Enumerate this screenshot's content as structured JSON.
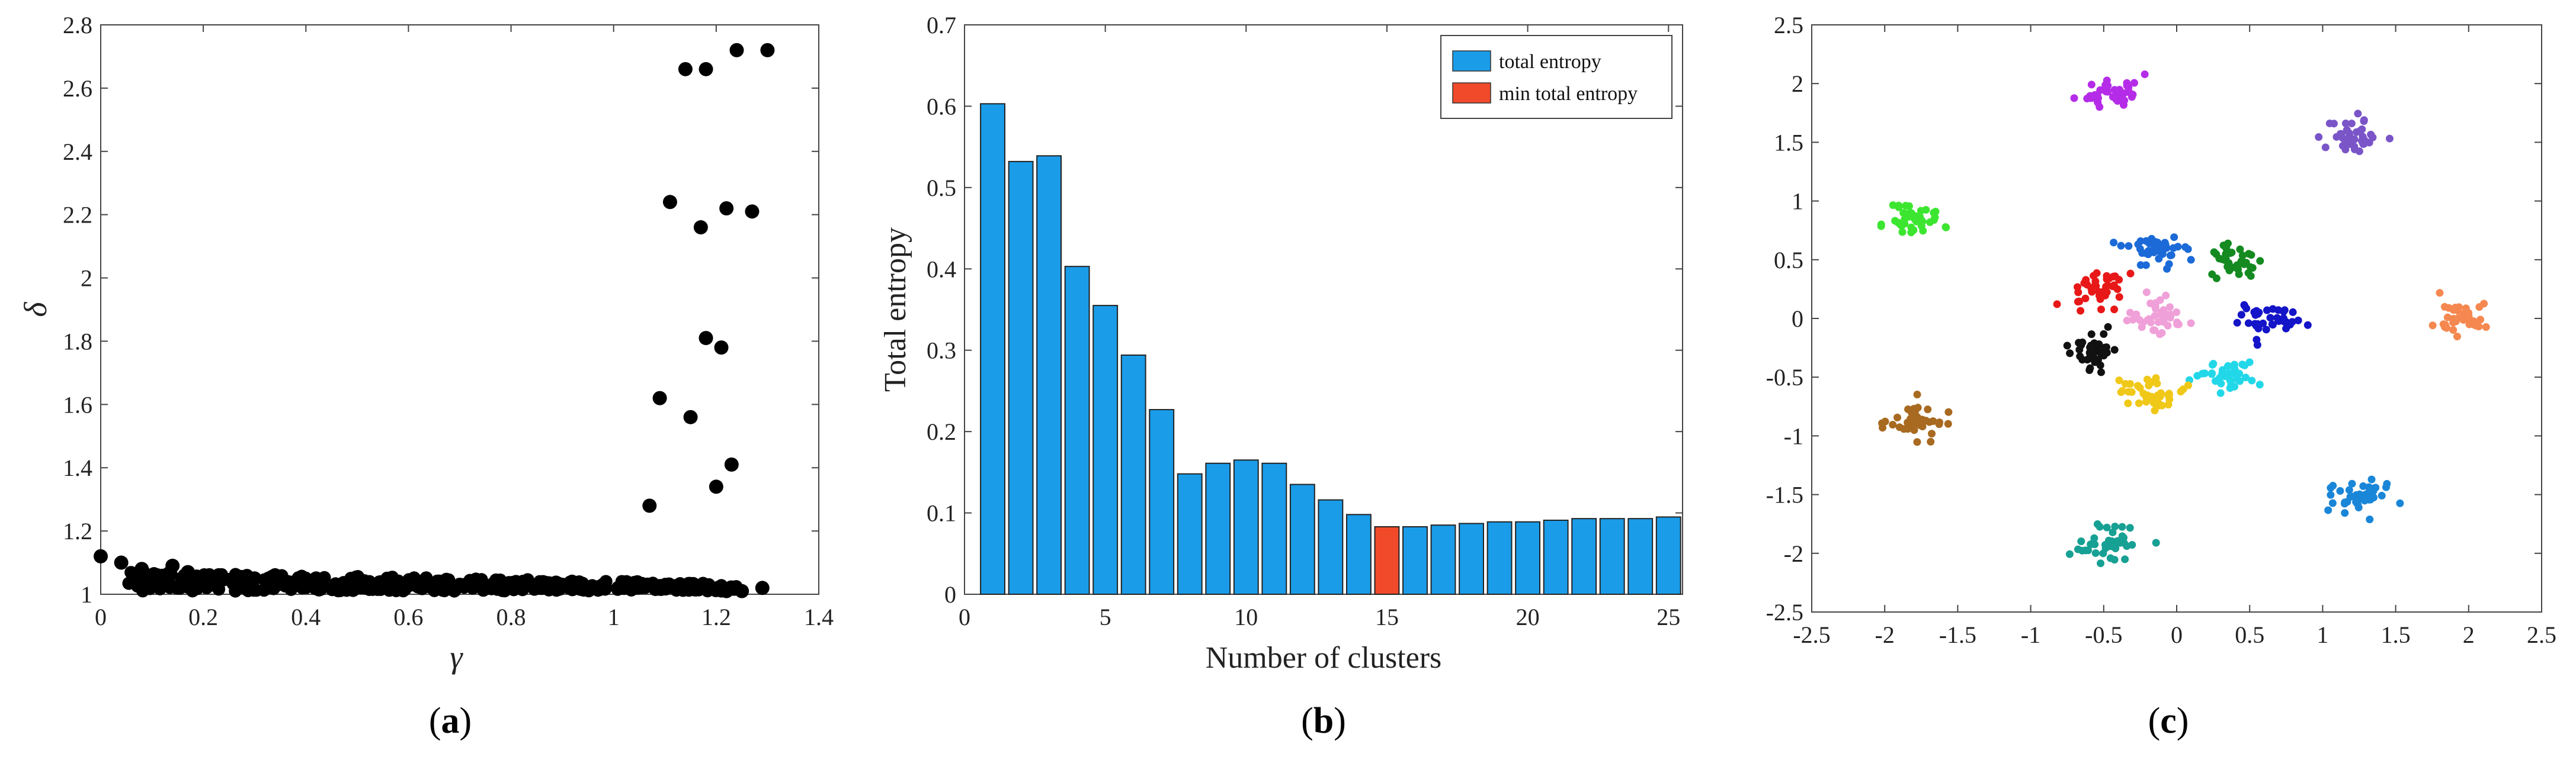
{
  "chart_data": [
    {
      "type": "scatter",
      "panel_label": "a",
      "xlabel": "γ",
      "ylabel": "δ",
      "xlim": [
        0,
        1.4
      ],
      "ylim": [
        1,
        2.8
      ],
      "xticks": [
        "0",
        "0.2",
        "0.4",
        "0.6",
        "0.8",
        "1",
        "1.2",
        "1.4"
      ],
      "yticks": [
        "1",
        "1.2",
        "1.4",
        "1.6",
        "1.8",
        "2",
        "2.2",
        "2.4",
        "2.6",
        "2.8"
      ],
      "color": "#000000",
      "points": [
        {
          "x": 1.07,
          "y": 1.28
        },
        {
          "x": 1.09,
          "y": 1.62
        },
        {
          "x": 1.11,
          "y": 2.24
        },
        {
          "x": 1.14,
          "y": 2.66
        },
        {
          "x": 1.15,
          "y": 1.56
        },
        {
          "x": 1.17,
          "y": 2.16
        },
        {
          "x": 1.18,
          "y": 1.81
        },
        {
          "x": 1.18,
          "y": 2.66
        },
        {
          "x": 1.2,
          "y": 1.34
        },
        {
          "x": 1.21,
          "y": 1.78
        },
        {
          "x": 1.22,
          "y": 2.22
        },
        {
          "x": 1.23,
          "y": 1.41
        },
        {
          "x": 1.24,
          "y": 2.72
        },
        {
          "x": 1.27,
          "y": 2.21
        },
        {
          "x": 1.3,
          "y": 2.72
        },
        {
          "x": 0.0,
          "y": 1.12
        },
        {
          "x": 0.04,
          "y": 1.1
        },
        {
          "x": 0.08,
          "y": 1.08
        },
        {
          "x": 0.11,
          "y": 1.06
        },
        {
          "x": 0.14,
          "y": 1.09
        },
        {
          "x": 0.17,
          "y": 1.07
        },
        {
          "x": 0.2,
          "y": 1.05
        },
        {
          "x": 0.23,
          "y": 1.06
        },
        {
          "x": 0.26,
          "y": 1.04
        },
        {
          "x": 0.3,
          "y": 1.05
        },
        {
          "x": 0.34,
          "y": 1.06
        },
        {
          "x": 0.38,
          "y": 1.04
        },
        {
          "x": 0.42,
          "y": 1.05
        },
        {
          "x": 0.46,
          "y": 1.03
        },
        {
          "x": 0.5,
          "y": 1.05
        },
        {
          "x": 0.54,
          "y": 1.03
        },
        {
          "x": 0.58,
          "y": 1.04
        },
        {
          "x": 0.62,
          "y": 1.03
        },
        {
          "x": 0.66,
          "y": 1.04
        },
        {
          "x": 0.7,
          "y": 1.03
        },
        {
          "x": 0.74,
          "y": 1.04
        },
        {
          "x": 0.78,
          "y": 1.02
        },
        {
          "x": 0.82,
          "y": 1.03
        },
        {
          "x": 0.86,
          "y": 1.02
        },
        {
          "x": 0.9,
          "y": 1.03
        },
        {
          "x": 0.94,
          "y": 1.02
        },
        {
          "x": 0.98,
          "y": 1.03
        },
        {
          "x": 1.02,
          "y": 1.02
        },
        {
          "x": 1.06,
          "y": 1.03
        },
        {
          "x": 1.1,
          "y": 1.02
        },
        {
          "x": 1.14,
          "y": 1.02
        },
        {
          "x": 1.18,
          "y": 1.02
        },
        {
          "x": 1.22,
          "y": 1.01
        },
        {
          "x": 1.25,
          "y": 1.01
        },
        {
          "x": 1.29,
          "y": 1.02
        }
      ],
      "dense_band": {
        "x_min": 0.05,
        "x_max": 1.24,
        "y_min": 1.01,
        "y_max": 1.07,
        "count": 380,
        "seed": 7
      }
    },
    {
      "type": "bar",
      "panel_label": "b",
      "xlabel": "Number of clusters",
      "ylabel": "Total entropy",
      "xlim": [
        0,
        25.5
      ],
      "ylim": [
        0,
        0.7
      ],
      "xticks": [
        "0",
        "5",
        "10",
        "15",
        "20",
        "25"
      ],
      "yticks": [
        "0",
        "0.1",
        "0.2",
        "0.3",
        "0.4",
        "0.5",
        "0.6",
        "0.7"
      ],
      "categories": [
        1,
        2,
        3,
        4,
        5,
        6,
        7,
        8,
        9,
        10,
        11,
        12,
        13,
        14,
        15,
        16,
        17,
        18,
        19,
        20,
        21,
        22,
        23,
        24,
        25
      ],
      "values": [
        0.603,
        0.532,
        0.539,
        0.403,
        0.355,
        0.294,
        0.227,
        0.148,
        0.161,
        0.165,
        0.161,
        0.135,
        0.116,
        0.098,
        0.083,
        0.083,
        0.085,
        0.087,
        0.089,
        0.089,
        0.091,
        0.093,
        0.093,
        0.093,
        0.095
      ],
      "highlight_index": 14,
      "colors": {
        "bar": "#1a9ce8",
        "highlight": "#f04a2b"
      },
      "legend": [
        {
          "label": "total entropy",
          "color": "#1a9ce8"
        },
        {
          "label": "min total entropy",
          "color": "#f04a2b"
        }
      ]
    },
    {
      "type": "scatter",
      "panel_label": "c",
      "xlim": [
        -2.5,
        2.5
      ],
      "ylim": [
        -2.5,
        2.5
      ],
      "xticks": [
        "-2.5",
        "-2",
        "-1.5",
        "-1",
        "-0.5",
        "0",
        "0.5",
        "1",
        "1.5",
        "2",
        "2.5"
      ],
      "yticks": [
        "-2.5",
        "-2",
        "-1.5",
        "-1",
        "-0.5",
        "0",
        "0.5",
        "1",
        "1.5",
        "2",
        "2.5"
      ],
      "clusters": [
        {
          "cx": -0.45,
          "cy": 1.93,
          "color": "#b52ce8"
        },
        {
          "cx": 1.22,
          "cy": 1.54,
          "color": "#7a55c8"
        },
        {
          "cx": -1.8,
          "cy": 0.85,
          "color": "#3ce630"
        },
        {
          "cx": -0.15,
          "cy": 0.58,
          "color": "#1b6ad8"
        },
        {
          "cx": 0.4,
          "cy": 0.5,
          "color": "#148a20"
        },
        {
          "cx": -0.55,
          "cy": 0.25,
          "color": "#e81818"
        },
        {
          "cx": -0.12,
          "cy": 0.03,
          "color": "#f0a0d8"
        },
        {
          "cx": 0.62,
          "cy": 0.0,
          "color": "#1414c8"
        },
        {
          "cx": 1.98,
          "cy": 0.0,
          "color": "#f58850"
        },
        {
          "cx": -0.6,
          "cy": -0.27,
          "color": "#111111"
        },
        {
          "cx": 0.35,
          "cy": -0.47,
          "color": "#22d8e8"
        },
        {
          "cx": -0.2,
          "cy": -0.62,
          "color": "#f0c818"
        },
        {
          "cx": -1.8,
          "cy": -0.88,
          "color": "#a86a20"
        },
        {
          "cx": 1.25,
          "cy": -1.5,
          "color": "#1a86d8"
        },
        {
          "cx": -0.45,
          "cy": -1.92,
          "color": "#17a094"
        }
      ],
      "points_per_cluster": 40,
      "spread": 0.1,
      "seed": 11
    }
  ]
}
